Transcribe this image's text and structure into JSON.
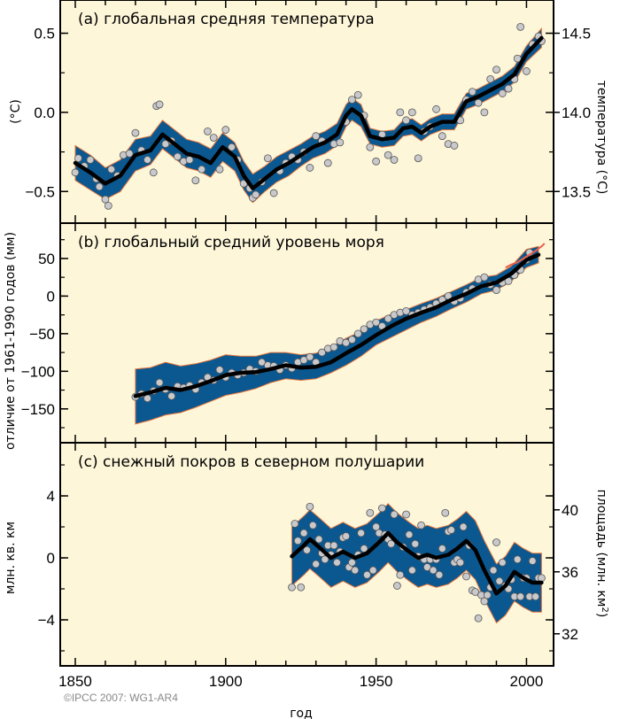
{
  "chart_data": [
    {
      "type": "line",
      "panel": "a",
      "title": "(a) глобальная средняя температура",
      "ylabel": "(°C)",
      "ylabel_right": "температура (°C)",
      "ylim": [
        -0.7,
        0.71
      ],
      "yticks": [
        0.5,
        0.0,
        -0.5
      ],
      "ytick_labels": [
        "0.5",
        "0.0",
        "−0.5"
      ],
      "yticks_right_labels": [
        "14.5",
        "14.0",
        "13.5"
      ],
      "smooth": {
        "x": [
          1850,
          1855,
          1860,
          1865,
          1870,
          1875,
          1879,
          1883,
          1887,
          1891,
          1895,
          1899,
          1903,
          1906,
          1909,
          1913,
          1917,
          1921,
          1925,
          1929,
          1933,
          1937,
          1940,
          1942,
          1945,
          1948,
          1952,
          1956,
          1959,
          1962,
          1965,
          1968,
          1972,
          1976,
          1980,
          1984,
          1988,
          1992,
          1996,
          2000,
          2005
        ],
        "y": [
          -0.32,
          -0.38,
          -0.45,
          -0.4,
          -0.27,
          -0.24,
          -0.14,
          -0.2,
          -0.26,
          -0.28,
          -0.32,
          -0.22,
          -0.28,
          -0.4,
          -0.48,
          -0.42,
          -0.36,
          -0.32,
          -0.27,
          -0.22,
          -0.19,
          -0.14,
          -0.02,
          0.02,
          -0.02,
          -0.15,
          -0.17,
          -0.16,
          -0.1,
          -0.09,
          -0.13,
          -0.09,
          -0.06,
          -0.06,
          0.07,
          0.1,
          0.14,
          0.18,
          0.24,
          0.37,
          0.47
        ],
        "halfwidth": [
          0.11,
          0.11,
          0.1,
          0.1,
          0.1,
          0.09,
          0.09,
          0.09,
          0.09,
          0.09,
          0.09,
          0.09,
          0.09,
          0.09,
          0.09,
          0.08,
          0.08,
          0.08,
          0.07,
          0.07,
          0.07,
          0.07,
          0.07,
          0.07,
          0.07,
          0.05,
          0.05,
          0.05,
          0.05,
          0.05,
          0.05,
          0.05,
          0.05,
          0.05,
          0.05,
          0.05,
          0.05,
          0.05,
          0.05,
          0.05,
          0.06
        ]
      },
      "points": {
        "x": [
          1850,
          1851,
          1853,
          1855,
          1857,
          1858,
          1860,
          1861,
          1862,
          1864,
          1866,
          1868,
          1870,
          1872,
          1874,
          1876,
          1877,
          1878,
          1880,
          1882,
          1884,
          1886,
          1888,
          1890,
          1892,
          1894,
          1896,
          1898,
          1900,
          1902,
          1904,
          1906,
          1908,
          1909,
          1910,
          1912,
          1914,
          1916,
          1918,
          1920,
          1922,
          1924,
          1926,
          1928,
          1930,
          1932,
          1934,
          1936,
          1938,
          1940,
          1942,
          1944,
          1946,
          1948,
          1950,
          1952,
          1954,
          1956,
          1958,
          1960,
          1962,
          1964,
          1966,
          1968,
          1970,
          1972,
          1974,
          1976,
          1978,
          1980,
          1982,
          1984,
          1986,
          1988,
          1990,
          1992,
          1994,
          1996,
          1997,
          1998,
          2000,
          2002,
          2004,
          2005
        ],
        "y": [
          -0.38,
          -0.29,
          -0.34,
          -0.3,
          -0.42,
          -0.47,
          -0.55,
          -0.59,
          -0.36,
          -0.4,
          -0.27,
          -0.26,
          -0.13,
          -0.24,
          -0.3,
          -0.38,
          0.04,
          0.05,
          -0.2,
          -0.18,
          -0.28,
          -0.31,
          -0.3,
          -0.43,
          -0.36,
          -0.12,
          -0.16,
          -0.36,
          -0.11,
          -0.22,
          -0.3,
          -0.45,
          -0.48,
          -0.54,
          -0.52,
          -0.44,
          -0.29,
          -0.51,
          -0.37,
          -0.32,
          -0.28,
          -0.3,
          -0.25,
          -0.35,
          -0.15,
          -0.18,
          -0.32,
          -0.2,
          -0.19,
          -0.06,
          0.08,
          0.11,
          -0.02,
          -0.22,
          -0.31,
          -0.14,
          -0.27,
          -0.3,
          0.0,
          -0.05,
          0.0,
          -0.29,
          -0.12,
          -0.09,
          0.02,
          -0.15,
          -0.2,
          -0.21,
          -0.05,
          0.08,
          0.13,
          0.06,
          0.0,
          0.21,
          0.27,
          0.12,
          0.15,
          0.21,
          0.34,
          0.54,
          0.26,
          0.43,
          0.48,
          0.45
        ]
      }
    },
    {
      "type": "line",
      "panel": "b",
      "title": "(b) глобальный средний уровень моря",
      "ylabel": "отличие от 1961-1990 годов (мм)",
      "ylim": [
        -195,
        97
      ],
      "yticks": [
        50,
        0,
        -50,
        -100,
        -150
      ],
      "ytick_labels": [
        "50",
        "0",
        "−50",
        "−100",
        "−150"
      ],
      "smooth": {
        "x": [
          1870,
          1875,
          1880,
          1885,
          1890,
          1895,
          1900,
          1905,
          1910,
          1915,
          1920,
          1925,
          1930,
          1935,
          1940,
          1945,
          1950,
          1955,
          1960,
          1965,
          1970,
          1975,
          1980,
          1985,
          1990,
          1995,
          2000,
          2004
        ],
        "y": [
          -133,
          -128,
          -122,
          -125,
          -120,
          -113,
          -105,
          -102,
          -101,
          -97,
          -92,
          -95,
          -94,
          -88,
          -76,
          -65,
          -52,
          -40,
          -30,
          -22,
          -15,
          -5,
          3,
          13,
          18,
          30,
          48,
          55
        ],
        "upper": [
          -97,
          -95,
          -88,
          -93,
          -90,
          -85,
          -78,
          -80,
          -80,
          -75,
          -75,
          -78,
          -76,
          -68,
          -56,
          -47,
          -33,
          -24,
          -18,
          -10,
          -3,
          6,
          15,
          25,
          28,
          40,
          62,
          66
        ],
        "lower": [
          -170,
          -165,
          -158,
          -155,
          -148,
          -140,
          -132,
          -128,
          -123,
          -115,
          -110,
          -112,
          -110,
          -102,
          -92,
          -80,
          -65,
          -55,
          -45,
          -35,
          -27,
          -17,
          -8,
          3,
          8,
          20,
          38,
          44
        ]
      },
      "points": {
        "x": [
          1870,
          1872,
          1874,
          1876,
          1878,
          1880,
          1882,
          1884,
          1886,
          1888,
          1890,
          1892,
          1894,
          1896,
          1898,
          1900,
          1902,
          1904,
          1906,
          1908,
          1910,
          1912,
          1914,
          1916,
          1918,
          1920,
          1922,
          1924,
          1926,
          1928,
          1930,
          1932,
          1934,
          1936,
          1938,
          1940,
          1942,
          1944,
          1946,
          1948,
          1950,
          1952,
          1954,
          1956,
          1958,
          1960,
          1962,
          1964,
          1966,
          1968,
          1970,
          1972,
          1974,
          1976,
          1978,
          1980,
          1982,
          1984,
          1986,
          1988,
          1990,
          1992,
          1994,
          1996,
          1998,
          2000,
          2001
        ],
        "y": [
          -134,
          -130,
          -136,
          -126,
          -115,
          -124,
          -133,
          -120,
          -122,
          -119,
          -124,
          -115,
          -108,
          -112,
          -98,
          -108,
          -102,
          -105,
          -102,
          -97,
          -100,
          -88,
          -92,
          -93,
          -98,
          -92,
          -96,
          -88,
          -85,
          -81,
          -88,
          -75,
          -70,
          -68,
          -60,
          -62,
          -58,
          -50,
          -44,
          -38,
          -35,
          -40,
          -30,
          -25,
          -22,
          -20,
          -25,
          -22,
          -18,
          -15,
          -10,
          -5,
          0,
          -7,
          -3,
          5,
          10,
          22,
          25,
          15,
          8,
          18,
          20,
          28,
          35,
          48,
          58
        ]
      },
      "altimetry": {
        "x": [
          1993,
          1995,
          1997,
          1999,
          2001,
          2003,
          2005,
          2006
        ],
        "y": [
          38,
          42,
          45,
          50,
          55,
          60,
          66,
          70
        ],
        "color": "#e8604a"
      }
    },
    {
      "type": "line",
      "panel": "c",
      "title": "(c) снежный покров в северном полушарии",
      "ylabel": "млн. кв. км",
      "ylabel_right_parts": [
        "площадь (млн. км",
        "2",
        ")"
      ],
      "ylim": [
        -6.97,
        7.43
      ],
      "yticks": [
        4,
        0,
        -4
      ],
      "ytick_labels": [
        "4",
        "0",
        "−4"
      ],
      "right_offset": 36.9,
      "yticks_right": [
        40,
        36,
        32
      ],
      "yticks_right_labels": [
        "40",
        "36",
        "32"
      ],
      "smooth": {
        "x": [
          1922,
          1926,
          1928,
          1931,
          1935,
          1939,
          1943,
          1947,
          1951,
          1954,
          1957,
          1961,
          1964,
          1967,
          1970,
          1974,
          1977,
          1980,
          1983,
          1986,
          1990,
          1993,
          1996,
          1999,
          2002,
          2005
        ],
        "y": [
          0.1,
          0.8,
          1.2,
          0.7,
          0.0,
          0.4,
          0.0,
          0.3,
          1.0,
          1.6,
          1.0,
          0.4,
          0.0,
          0.2,
          0.0,
          0.2,
          0.6,
          1.1,
          0.5,
          -0.8,
          -2.3,
          -1.8,
          -0.9,
          -1.3,
          -1.6,
          -1.6
        ],
        "halfwidth": [
          1.9,
          1.9,
          1.9,
          1.9,
          1.9,
          1.9,
          1.9,
          1.9,
          1.9,
          1.9,
          1.9,
          1.9,
          1.9,
          1.9,
          1.9,
          1.9,
          1.9,
          1.9,
          1.9,
          1.9,
          1.9,
          1.9,
          1.9,
          1.9,
          1.9,
          1.9
        ]
      },
      "points": {
        "x": [
          1922,
          1923,
          1924,
          1925,
          1926,
          1927,
          1928,
          1929,
          1930,
          1931,
          1932,
          1933,
          1934,
          1935,
          1936,
          1937,
          1938,
          1939,
          1940,
          1941,
          1942,
          1943,
          1944,
          1945,
          1946,
          1947,
          1948,
          1949,
          1950,
          1951,
          1952,
          1953,
          1954,
          1955,
          1956,
          1957,
          1958,
          1959,
          1960,
          1961,
          1962,
          1963,
          1964,
          1965,
          1966,
          1967,
          1968,
          1969,
          1970,
          1971,
          1972,
          1973,
          1974,
          1975,
          1976,
          1977,
          1978,
          1979,
          1980,
          1981,
          1982,
          1983,
          1984,
          1985,
          1986,
          1987,
          1988,
          1989,
          1990,
          1991,
          1992,
          1993,
          1994,
          1995,
          1996,
          1997,
          1998,
          1999,
          2000,
          2001,
          2002,
          2003,
          2004,
          2005
        ],
        "y": [
          -1.9,
          2.2,
          1.1,
          -1.9,
          1.6,
          0.5,
          3.3,
          2.1,
          -0.4,
          1.2,
          0.3,
          -0.1,
          0.8,
          0.2,
          0.8,
          -0.3,
          0.4,
          1.3,
          1.4,
          -0.6,
          -0.3,
          -0.8,
          0.2,
          1.6,
          0.6,
          -1.1,
          2.9,
          -0.8,
          2.0,
          1.6,
          3.2,
          1.5,
          1.2,
          0.9,
          2.8,
          -1.8,
          -1.1,
          0.7,
          2.8,
          1.5,
          -0.8,
          0.9,
          0.1,
          2.1,
          -0.1,
          -0.6,
          -0.1,
          -0.8,
          -0.1,
          -1.1,
          0.6,
          2.9,
          1.7,
          1.8,
          -0.3,
          -0.1,
          -0.3,
          2.0,
          -1.2,
          0.8,
          -2.1,
          -2.2,
          -3.9,
          -2.4,
          -2.8,
          -2.4,
          -1.9,
          -0.8,
          1.0,
          -1.5,
          -0.3,
          -1.8,
          -2.0,
          -1.4,
          -2.5,
          -0.1,
          -2.5,
          -1.3,
          -1.3,
          -2.5,
          -0.2,
          -2.5,
          -1.3,
          -1.3
        ]
      }
    }
  ],
  "xaxis": {
    "label": "год",
    "xlim": [
      1845,
      2009
    ],
    "ticks": [
      1850,
      1900,
      1950,
      2000
    ],
    "tick_labels": [
      "1850",
      "1900",
      "1950",
      "2000"
    ]
  },
  "copyright": "©IPCC  2007: WG1-AR4",
  "colors": {
    "background": "#fdf6d9",
    "band": "#0b5891",
    "band_edge": "#e8763a",
    "smooth": "#000000",
    "point_fill": "#c9c9cc",
    "point_stroke": "#555555"
  }
}
